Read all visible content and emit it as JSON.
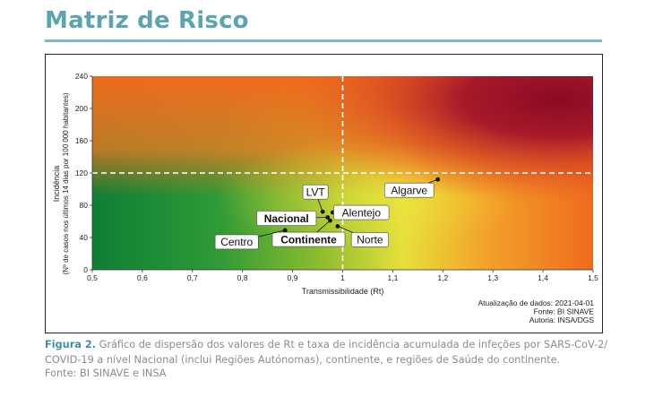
{
  "page": {
    "title": "Matriz de Risco"
  },
  "caption": {
    "figure_label": "Figura 2.",
    "text": "Gráfico de dispersão dos valores de Rt e taxa de incidência acumulada de infeções por SARS-CoV-2/ COVID-19 a nível Nacional (inclui Regiões Autónomas), continente, e regiões de Saúde do continente.",
    "source": "Fonte: BI SINAVE e INSA"
  },
  "chart_data": {
    "type": "scatter",
    "title": "",
    "xlabel": "Transmissibilidade (Rt)",
    "ylabel": "Incidência",
    "ylabel_sub": "(Nº de casos nos últimos 14 dias por 100 000 habitantes)",
    "xlim": [
      0.5,
      1.5
    ],
    "ylim": [
      0,
      240
    ],
    "x_ticks": [
      "0,5",
      "0,6",
      "0,7",
      "0,8",
      "0,9",
      "1",
      "1,1",
      "1,2",
      "1,3",
      "1,4",
      "1,5"
    ],
    "y_ticks": [
      "0",
      "40",
      "80",
      "120",
      "160",
      "200",
      "240"
    ],
    "reference_lines": {
      "x": 1,
      "y": 120
    },
    "points": [
      {
        "label": "Algarve",
        "x": 1.19,
        "y": 112,
        "bold": false
      },
      {
        "label": "LVT",
        "x": 0.96,
        "y": 72,
        "bold": false
      },
      {
        "label": "Alentejo",
        "x": 0.98,
        "y": 71,
        "bold": false
      },
      {
        "label": "Nacional",
        "x": 0.97,
        "y": 65,
        "bold": true
      },
      {
        "label": "Continente",
        "x": 0.975,
        "y": 61,
        "bold": true
      },
      {
        "label": "Norte",
        "x": 0.99,
        "y": 54,
        "bold": false
      },
      {
        "label": "Centro",
        "x": 0.885,
        "y": 49,
        "bold": false
      }
    ],
    "annotations": [
      "Atualização de dados: 2021-04-01",
      "Fonte: BI SINAVE",
      "Autoria: INSA/DGS"
    ],
    "colors": {
      "low": "#0e7e35",
      "mid": "#e9e03a",
      "high_transmission": "#f06a1e",
      "high_risk": "#8a0a24"
    }
  }
}
